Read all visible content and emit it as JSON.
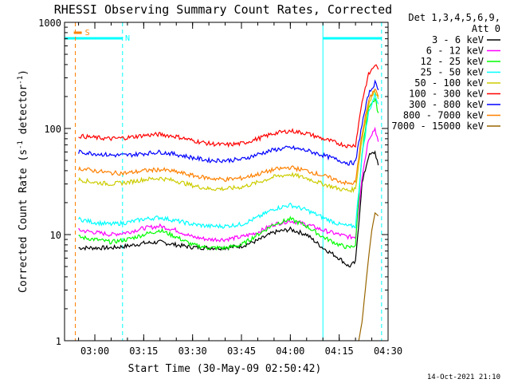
{
  "chart_data": {
    "type": "line",
    "title": "RHESSI Observing Summary Count Rates, Corrected",
    "xlabel": "Start Time (30-May-09 02:50:42)",
    "ylabel_parts": [
      "Corrected Count Rate (s",
      "-1",
      " detector",
      "-1",
      ")"
    ],
    "x_range": [
      "02:50:42",
      "04:30:00"
    ],
    "x_ticks": [
      {
        "t": "03:00",
        "label": "03:00"
      },
      {
        "t": "03:15",
        "label": "03:15"
      },
      {
        "t": "03:30",
        "label": "03:30"
      },
      {
        "t": "03:45",
        "label": "03:45"
      },
      {
        "t": "04:00",
        "label": "04:00"
      },
      {
        "t": "04:15",
        "label": "04:15"
      },
      {
        "t": "04:30",
        "label": "04:30"
      }
    ],
    "y_scale": "log",
    "ylim": [
      1,
      1000
    ],
    "y_ticks": [
      {
        "v": 1,
        "label": "1"
      },
      {
        "v": 10,
        "label": "10"
      },
      {
        "v": 100,
        "label": "100"
      },
      {
        "v": 1000,
        "label": "1000"
      }
    ],
    "legend_header": [
      "Det 1,3,4,5,6,9,",
      "Att 0"
    ],
    "legend_position": "right",
    "series": [
      {
        "name": "3 - 6 keV",
        "color": "#000000",
        "x": [
          "02:55",
          "03:00",
          "03:05",
          "03:10",
          "03:15",
          "03:20",
          "03:25",
          "03:30",
          "03:35",
          "03:40",
          "03:45",
          "03:50",
          "03:55",
          "04:00",
          "04:05",
          "04:10",
          "04:15",
          "04:18",
          "04:20",
          "04:22",
          "04:24",
          "04:26",
          "04:27"
        ],
        "y": [
          7.5,
          7.5,
          7.5,
          7.8,
          8.3,
          8.5,
          8,
          7.6,
          7.5,
          7.5,
          7.8,
          8.8,
          10.5,
          11.2,
          10,
          7.5,
          6,
          5,
          5.5,
          30,
          55,
          60,
          45
        ]
      },
      {
        "name": "6 - 12 keV",
        "color": "#ff00ff",
        "x": [
          "02:55",
          "03:00",
          "03:05",
          "03:10",
          "03:15",
          "03:20",
          "03:25",
          "03:30",
          "03:35",
          "03:40",
          "03:45",
          "03:50",
          "03:55",
          "04:00",
          "04:05",
          "04:10",
          "04:15",
          "04:18",
          "04:20",
          "04:22",
          "04:24",
          "04:26",
          "04:27"
        ],
        "y": [
          11,
          10.5,
          10,
          10.5,
          11.5,
          12,
          11,
          9.5,
          9,
          9,
          9.5,
          10.5,
          12.5,
          13.5,
          12.5,
          11,
          10,
          9.5,
          9.5,
          35,
          80,
          100,
          75
        ]
      },
      {
        "name": "12 - 25 keV",
        "color": "#00ff00",
        "x": [
          "02:55",
          "03:00",
          "03:05",
          "03:10",
          "03:15",
          "03:20",
          "03:25",
          "03:30",
          "03:35",
          "03:40",
          "03:45",
          "03:50",
          "03:55",
          "04:00",
          "04:05",
          "04:10",
          "04:15",
          "04:18",
          "04:20",
          "04:22",
          "04:24",
          "04:26",
          "04:27"
        ],
        "y": [
          9.5,
          9,
          8.5,
          9,
          10,
          11,
          9.5,
          8,
          7.5,
          7.5,
          8,
          10,
          12.5,
          14,
          12,
          9.5,
          8,
          7.5,
          8,
          60,
          150,
          190,
          140
        ]
      },
      {
        "name": "25 - 50 keV",
        "color": "#00ffff",
        "x": [
          "02:55",
          "03:00",
          "03:05",
          "03:10",
          "03:15",
          "03:20",
          "03:25",
          "03:30",
          "03:35",
          "03:40",
          "03:45",
          "03:50",
          "03:55",
          "04:00",
          "04:05",
          "04:10",
          "04:15",
          "04:18",
          "04:20",
          "04:22",
          "04:24",
          "04:26",
          "04:27"
        ],
        "y": [
          14,
          13,
          12.5,
          13,
          14,
          14.5,
          13.5,
          12.5,
          12,
          12,
          12.5,
          14.5,
          17.5,
          19,
          17,
          14.5,
          12.5,
          12,
          12,
          55,
          140,
          210,
          170
        ]
      },
      {
        "name": "50 - 100 keV",
        "color": "#cccc00",
        "x": [
          "02:55",
          "03:00",
          "03:05",
          "03:10",
          "03:15",
          "03:20",
          "03:25",
          "03:30",
          "03:35",
          "03:40",
          "03:45",
          "03:50",
          "03:55",
          "04:00",
          "04:05",
          "04:10",
          "04:15",
          "04:18",
          "04:20",
          "04:22",
          "04:24",
          "04:26",
          "04:27"
        ],
        "y": [
          33,
          31,
          30,
          31,
          33,
          34,
          32,
          29,
          27,
          27,
          28,
          31,
          35,
          37,
          34,
          30,
          27,
          26,
          27,
          80,
          170,
          230,
          190
        ]
      },
      {
        "name": "100 - 300 keV",
        "color": "#ff0000",
        "x": [
          "02:55",
          "03:00",
          "03:05",
          "03:10",
          "03:15",
          "03:20",
          "03:25",
          "03:30",
          "03:35",
          "03:40",
          "03:45",
          "03:50",
          "03:55",
          "04:00",
          "04:05",
          "04:10",
          "04:15",
          "04:18",
          "04:20",
          "04:22",
          "04:24",
          "04:26",
          "04:27"
        ],
        "y": [
          85,
          82,
          80,
          82,
          86,
          88,
          84,
          77,
          72,
          70,
          72,
          80,
          90,
          95,
          90,
          80,
          72,
          68,
          70,
          180,
          320,
          400,
          360
        ]
      },
      {
        "name": "300 - 800 keV",
        "color": "#0000ff",
        "x": [
          "02:55",
          "03:00",
          "03:05",
          "03:10",
          "03:15",
          "03:20",
          "03:25",
          "03:30",
          "03:35",
          "03:40",
          "03:45",
          "03:50",
          "03:55",
          "04:00",
          "04:05",
          "04:10",
          "04:15",
          "04:18",
          "04:20",
          "04:22",
          "04:24",
          "04:26",
          "04:27"
        ],
        "y": [
          60,
          58,
          56,
          56,
          58,
          60,
          57,
          53,
          50,
          50,
          51,
          57,
          63,
          66,
          62,
          56,
          50,
          47,
          48,
          110,
          210,
          270,
          230
        ]
      },
      {
        "name": "800 - 7000 keV",
        "color": "#ff8000",
        "x": [
          "02:55",
          "03:00",
          "03:05",
          "03:10",
          "03:15",
          "03:20",
          "03:25",
          "03:30",
          "03:35",
          "03:40",
          "03:45",
          "03:50",
          "03:55",
          "04:00",
          "04:05",
          "04:10",
          "04:15",
          "04:18",
          "04:20",
          "04:22",
          "04:24",
          "04:26",
          "04:27"
        ],
        "y": [
          42,
          40,
          38,
          38,
          40,
          41,
          39,
          36,
          34,
          33,
          34,
          37,
          41,
          43,
          40,
          36,
          32,
          30,
          31,
          90,
          180,
          240,
          200
        ]
      },
      {
        "name": "7000 - 15000 keV",
        "color": "#996600",
        "x": [
          "04:21",
          "04:22",
          "04:23",
          "04:24",
          "04:25",
          "04:26",
          "04:27"
        ],
        "y": [
          1,
          1.5,
          3,
          6,
          11,
          16,
          15
        ]
      }
    ],
    "annotations": {
      "attenuator_state": {
        "label": "S",
        "color": "#ff8000",
        "x": "02:55:30"
      },
      "night_label": {
        "label": "N",
        "color": "#00ffff"
      },
      "night_intervals": [
        [
          "02:50:42",
          "03:08:30"
        ],
        [
          "04:10:00",
          "04:28:00"
        ]
      ],
      "vertical_markers": [
        {
          "t": "02:50:42",
          "color": "#00ffff",
          "style": "solid"
        },
        {
          "t": "02:54:00",
          "color": "#ff8000",
          "style": "dashed"
        },
        {
          "t": "03:08:30",
          "color": "#00ffff",
          "style": "dashed"
        },
        {
          "t": "04:10:00",
          "color": "#00ffff",
          "style": "solid"
        },
        {
          "t": "04:28:00",
          "color": "#00ffff",
          "style": "dashed"
        }
      ]
    },
    "grid": false
  },
  "footer": {
    "timestamp": "14-Oct-2021 21:10"
  }
}
